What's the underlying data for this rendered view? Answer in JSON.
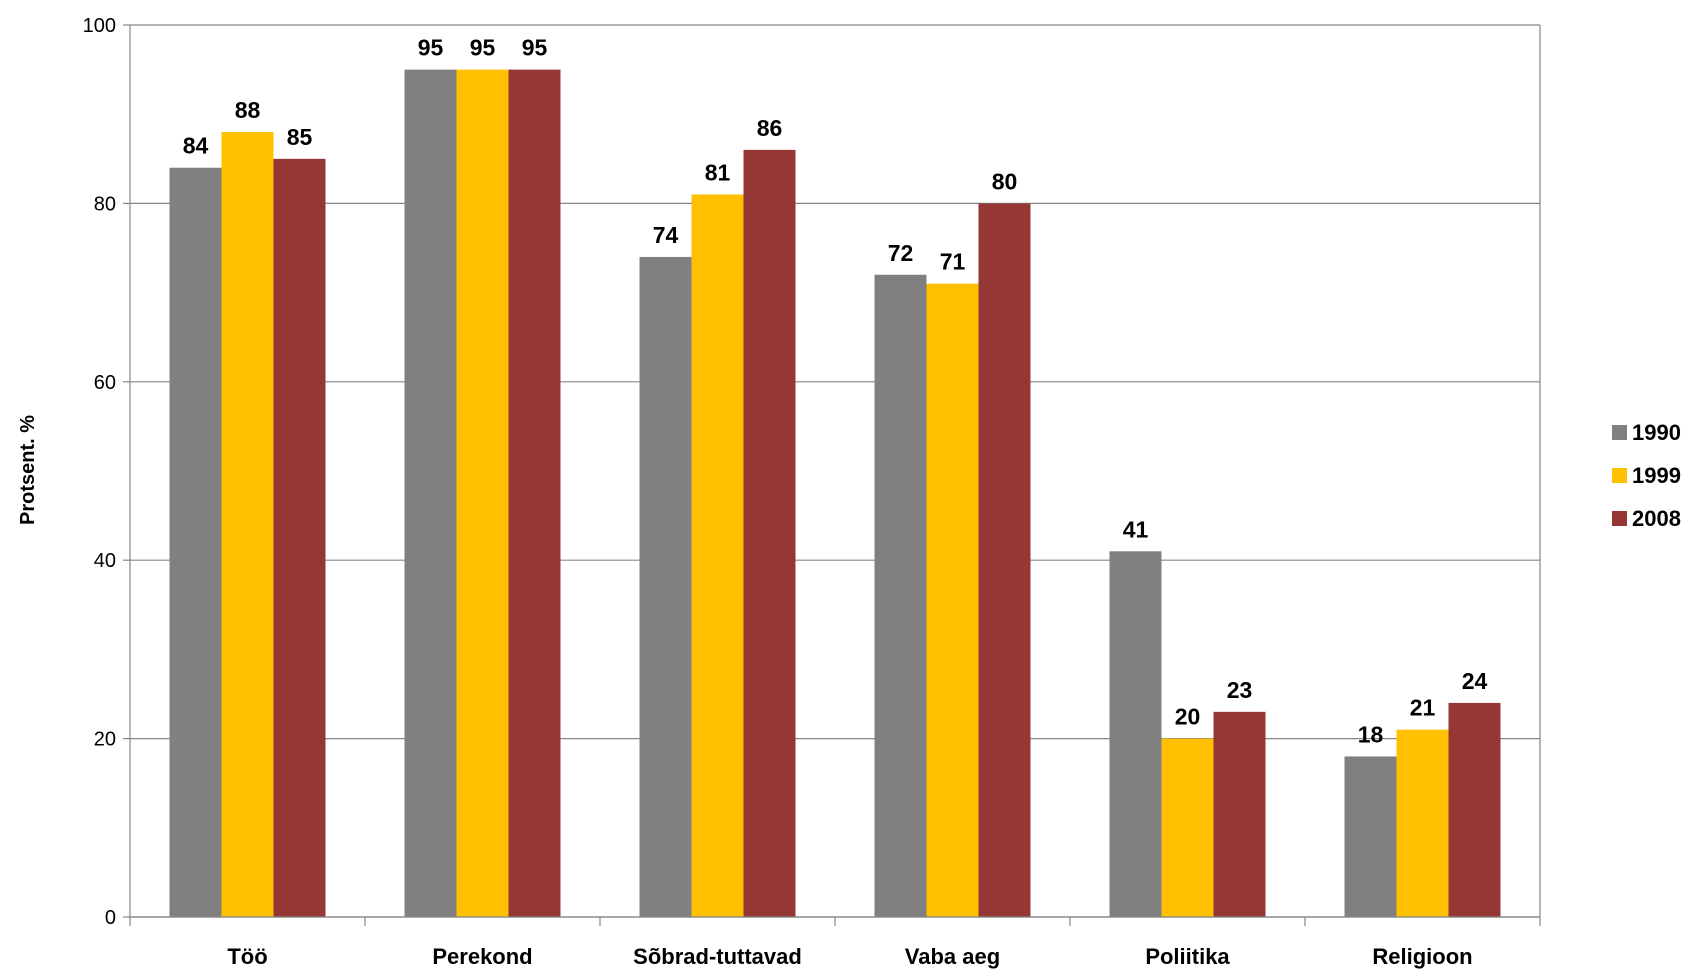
{
  "chart_data": {
    "type": "bar",
    "title": "",
    "xlabel": "",
    "ylabel": "Protsent. %",
    "ylim": [
      0,
      100
    ],
    "yticks": [
      0,
      20,
      40,
      60,
      80,
      100
    ],
    "grid": true,
    "legend_position": "right",
    "categories": [
      "Töö",
      "Perekond",
      "Sõbrad-tuttavad",
      "Vaba aeg",
      "Poliitika",
      "Religioon"
    ],
    "series": [
      {
        "name": "1990",
        "color": "#808080",
        "values": [
          84,
          95,
          74,
          72,
          41,
          18
        ]
      },
      {
        "name": "1999",
        "color": "#FFC000",
        "values": [
          88,
          95,
          81,
          71,
          20,
          21
        ]
      },
      {
        "name": "2008",
        "color": "#953735",
        "values": [
          85,
          95,
          86,
          80,
          23,
          24
        ]
      }
    ]
  }
}
